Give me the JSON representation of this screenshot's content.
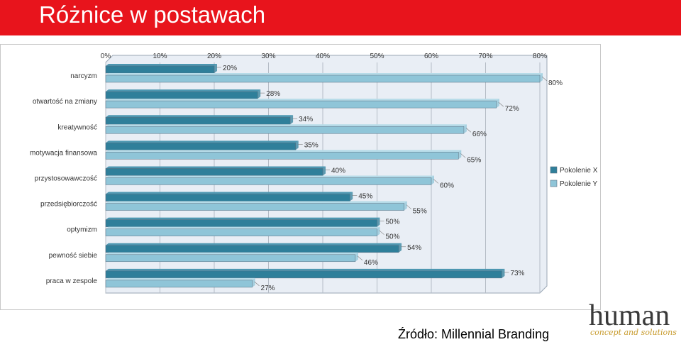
{
  "header": {
    "title": "Różnice w postawach"
  },
  "source": "Źródło: Millennial Branding",
  "logo": {
    "word": "human",
    "tagline": "concept and solutions"
  },
  "colors": {
    "title_bg": "#e8141c",
    "series_x_front": "#2f7f9a",
    "series_x_top": "#4d97b1",
    "series_y_front": "#8fc5d8",
    "series_y_top": "#b6dbe8",
    "plot_bg": "#e9eef5",
    "logo": "#3a3a3a",
    "logo_tagline": "#c79a2b"
  },
  "chart_data": {
    "type": "bar",
    "orientation": "horizontal",
    "categories": [
      "narcyzm",
      "otwartość na zmiany",
      "kreatywność",
      "motywacja finansowa",
      "przystosowawczość",
      "przedsiębiorczość",
      "optymizm",
      "pewność siebie",
      "praca w zespole"
    ],
    "series": [
      {
        "name": "Pokolenie X",
        "values": [
          20,
          28,
          34,
          35,
          40,
          45,
          50,
          54,
          73
        ]
      },
      {
        "name": "Pokolenie Y",
        "values": [
          80,
          72,
          66,
          65,
          60,
          55,
          50,
          46,
          27
        ]
      }
    ],
    "x_ticks": [
      "0%",
      "10%",
      "20%",
      "30%",
      "40%",
      "50%",
      "60%",
      "70%",
      "80%"
    ],
    "xlim": [
      0,
      80
    ],
    "grid": true,
    "legend_position": "right",
    "data_labels": true
  }
}
